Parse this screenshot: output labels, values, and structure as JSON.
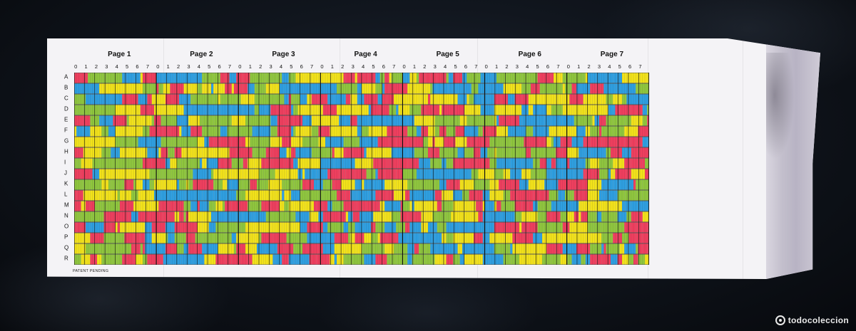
{
  "sheet": {
    "pages": [
      "Page 1",
      "Page 2",
      "Page 3",
      "Page 4",
      "Page 5",
      "Page 6",
      "Page 7"
    ],
    "column_numbers": [
      "0",
      "1",
      "2",
      "3",
      "4",
      "5",
      "6",
      "7"
    ],
    "row_letters": [
      "A",
      "B",
      "C",
      "D",
      "E",
      "F",
      "G",
      "H",
      "I",
      "J",
      "K",
      "L",
      "M",
      "N",
      "O",
      "P",
      "Q",
      "R"
    ],
    "footer_note": "PATENT PENDING",
    "cell_colors": [
      "#f2e21a",
      "#2f9fe0",
      "#ef3f5e",
      "#8fc63e"
    ]
  },
  "watermark": {
    "text": "todocoleccion"
  }
}
